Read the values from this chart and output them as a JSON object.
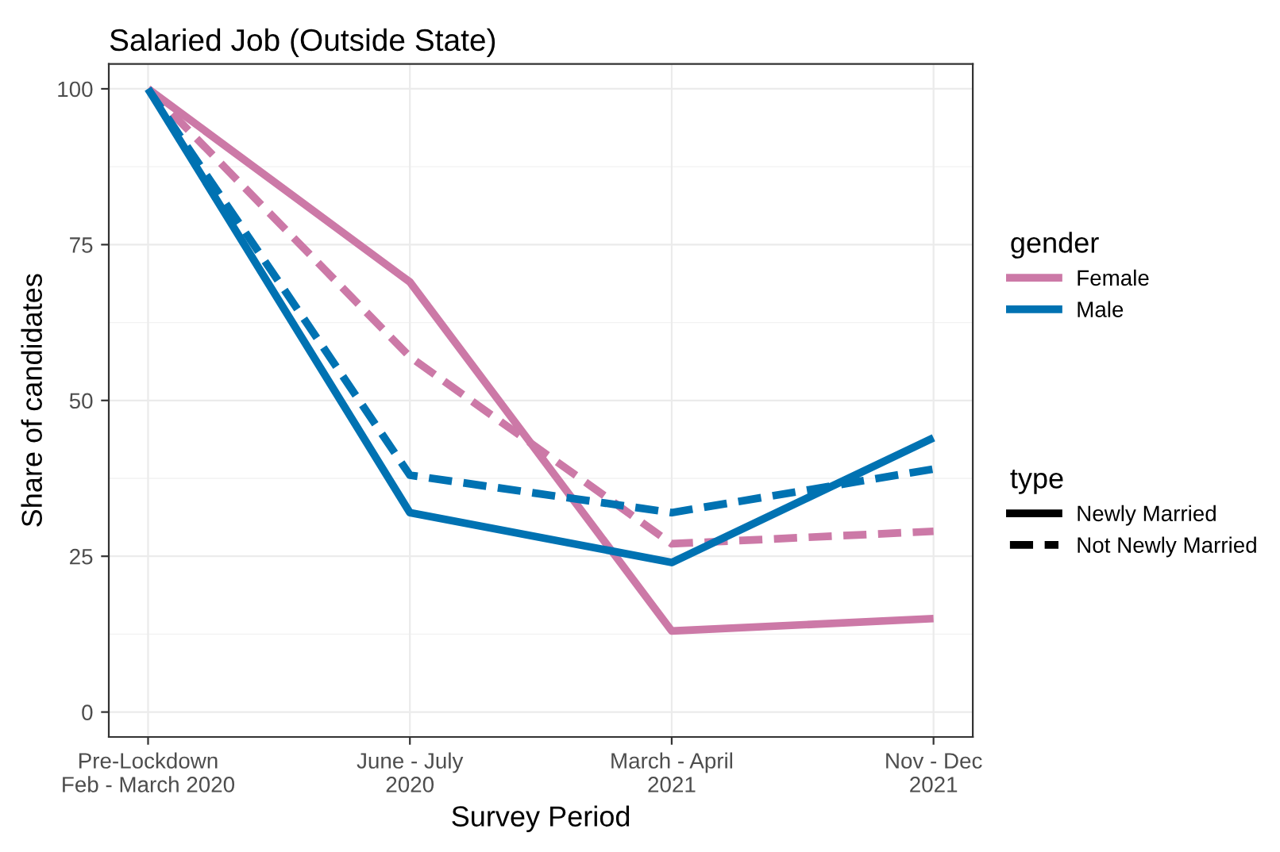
{
  "chart_data": {
    "type": "line",
    "title": "Salaried Job (Outside State)",
    "xlabel": "Survey Period",
    "ylabel": "Share of candidates",
    "categories": [
      "Pre-Lockdown\nFeb - March 2020",
      "June - July\n2020",
      "March - April\n2021",
      "Nov - Dec\n2021"
    ],
    "ylim": [
      -4,
      104
    ],
    "yticks": [
      0,
      25,
      50,
      75,
      100
    ],
    "grid": true,
    "legend": "right",
    "legend_title": "gender",
    "annotations": [
      "type",
      "Newly Married",
      "Not Newly Married"
    ],
    "series": [
      {
        "name": "Female",
        "color": "#cc79a7",
        "line_style": "solid",
        "values": [
          100,
          69,
          13,
          15
        ]
      },
      {
        "color": "#cc79a7",
        "line_style": "dashed",
        "values": [
          100,
          57,
          27,
          29
        ]
      },
      {
        "name": "Male",
        "color": "#0072b2",
        "line_style": "solid",
        "values": [
          100,
          32,
          24,
          44
        ]
      },
      {
        "color": "#0072b2",
        "line_style": "dashed",
        "values": [
          100,
          38,
          32,
          39
        ]
      }
    ]
  }
}
